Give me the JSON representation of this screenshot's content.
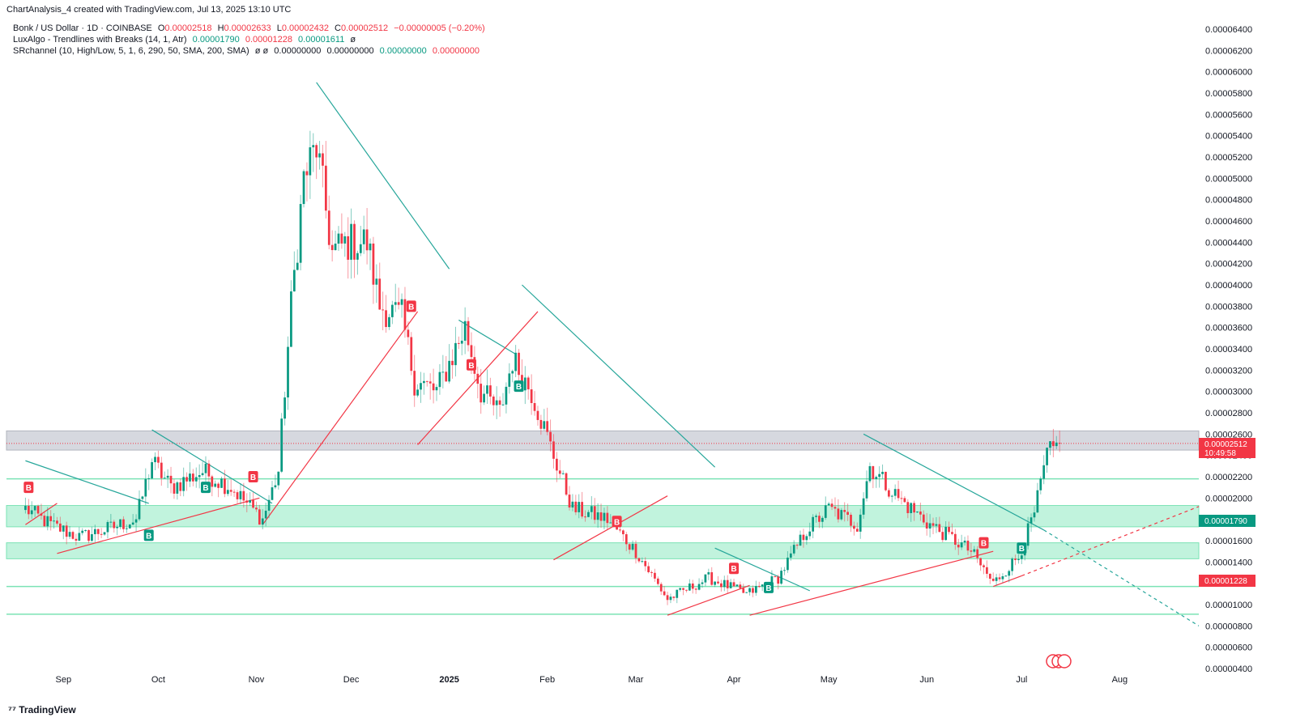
{
  "header": {
    "created_by": "ChartAnalysis_4 created with TradingView.com, Jul 13, 2025 13:10 UTC"
  },
  "legend": {
    "symbol_line": {
      "name": "Bonk / US Dollar · 1D · COINBASE",
      "open_label": "O",
      "open": "0.00002518",
      "high_label": "H",
      "high": "0.00002633",
      "low_label": "L",
      "low": "0.00002432",
      "close_label": "C",
      "close": "0.00002512",
      "change": "−0.00000005 (−0.20%)"
    },
    "luxalgo_line": {
      "name": "LuxAlgo - Trendlines with Breaks (14, 1, Atr)",
      "v1": "0.00001790",
      "v2": "0.00001228",
      "v3": "0.00001611",
      "icon": "ø"
    },
    "sr_line": {
      "name": "SRchannel (10, High/Low, 5, 1, 6, 290, 50, SMA, 200, SMA)",
      "icons": "ø ø",
      "v1": "0.00000000",
      "v2": "0.00000000",
      "v3": "0.00000000",
      "v4": "0.00000000"
    }
  },
  "footer": {
    "logo_text": "TradingView"
  },
  "price_tags": {
    "last_price": "0.00002512",
    "countdown": "10:49:58",
    "trend_upper": "0.00001790",
    "trend_lower": "0.00001228"
  },
  "colors": {
    "up": "#089981",
    "down": "#f23645",
    "zone": "#b2f0d4",
    "zone_line": "#7be3b5",
    "resistance_zone": "#d1d4dc",
    "trend_down": "#26a69a",
    "trend_up": "#f23645"
  },
  "chart_data": {
    "type": "candlestick",
    "title": "Bonk / US Dollar · 1D · COINBASE",
    "y_axis": {
      "min": 4e-06,
      "max": 6.4e-05,
      "step": 2e-06,
      "tick_labels": [
        "0.00006400",
        "0.00006200",
        "0.00006000",
        "0.00005800",
        "0.00005600",
        "0.00005400",
        "0.00005200",
        "0.00005000",
        "0.00004800",
        "0.00004600",
        "0.00004400",
        "0.00004200",
        "0.00004000",
        "0.00003800",
        "0.00003600",
        "0.00003400",
        "0.00003200",
        "0.00003000",
        "0.00002800",
        "0.00002600",
        "0.00002400",
        "0.00002200",
        "0.00002000",
        "0.00001800",
        "0.00001600",
        "0.00001400",
        "0.00001200",
        "0.00001000",
        "0.00000800",
        "0.00000600",
        "0.00000400"
      ]
    },
    "x_axis": {
      "tick_labels": [
        "Sep",
        "Oct",
        "Nov",
        "Dec",
        "2025",
        "Feb",
        "Mar",
        "Apr",
        "May",
        "Jun",
        "Jul",
        "Aug"
      ],
      "tick_dates": [
        "2024-09-01",
        "2024-10-01",
        "2024-11-01",
        "2024-12-01",
        "2025-01-01",
        "2025-02-01",
        "2025-03-01",
        "2025-04-01",
        "2025-05-01",
        "2025-06-01",
        "2025-07-01",
        "2025-08-01"
      ]
    },
    "price_anchors": [
      {
        "date": "2024-08-20",
        "close": 1.9e-05
      },
      {
        "date": "2024-08-28",
        "close": 1.75e-05
      },
      {
        "date": "2024-09-06",
        "close": 1.63e-05
      },
      {
        "date": "2024-09-14",
        "close": 1.7e-05
      },
      {
        "date": "2024-09-24",
        "close": 1.8e-05
      },
      {
        "date": "2024-09-29",
        "close": 2.35e-05
      },
      {
        "date": "2024-10-05",
        "close": 2.1e-05
      },
      {
        "date": "2024-10-15",
        "close": 2.25e-05
      },
      {
        "date": "2024-10-24",
        "close": 2.1e-05
      },
      {
        "date": "2024-11-03",
        "close": 1.8e-05
      },
      {
        "date": "2024-11-08",
        "close": 2.25e-05
      },
      {
        "date": "2024-11-12",
        "close": 3.8e-05
      },
      {
        "date": "2024-11-16",
        "close": 5e-05
      },
      {
        "date": "2024-11-20",
        "close": 5.3e-05
      },
      {
        "date": "2024-11-25",
        "close": 4.3e-05
      },
      {
        "date": "2024-11-30",
        "close": 4.4e-05
      },
      {
        "date": "2024-12-06",
        "close": 4.4e-05
      },
      {
        "date": "2024-12-10",
        "close": 3.8e-05
      },
      {
        "date": "2024-12-17",
        "close": 3.7e-05
      },
      {
        "date": "2024-12-21",
        "close": 3.1e-05
      },
      {
        "date": "2024-12-28",
        "close": 3e-05
      },
      {
        "date": "2025-01-06",
        "close": 3.6e-05
      },
      {
        "date": "2025-01-11",
        "close": 3e-05
      },
      {
        "date": "2025-01-17",
        "close": 2.8e-05
      },
      {
        "date": "2025-01-21",
        "close": 3.3e-05
      },
      {
        "date": "2025-01-27",
        "close": 3e-05
      },
      {
        "date": "2025-02-03",
        "close": 2.4e-05
      },
      {
        "date": "2025-02-09",
        "close": 1.9e-05
      },
      {
        "date": "2025-02-20",
        "close": 1.8e-05
      },
      {
        "date": "2025-03-01",
        "close": 1.5e-05
      },
      {
        "date": "2025-03-11",
        "close": 1.05e-05
      },
      {
        "date": "2025-03-24",
        "close": 1.25e-05
      },
      {
        "date": "2025-04-05",
        "close": 1.1e-05
      },
      {
        "date": "2025-04-15",
        "close": 1.25e-05
      },
      {
        "date": "2025-04-24",
        "close": 1.7e-05
      },
      {
        "date": "2025-05-01",
        "close": 1.9e-05
      },
      {
        "date": "2025-05-10",
        "close": 1.75e-05
      },
      {
        "date": "2025-05-14",
        "close": 2.3e-05
      },
      {
        "date": "2025-05-23",
        "close": 2e-05
      },
      {
        "date": "2025-06-02",
        "close": 1.75e-05
      },
      {
        "date": "2025-06-10",
        "close": 1.6e-05
      },
      {
        "date": "2025-06-15",
        "close": 1.5e-05
      },
      {
        "date": "2025-06-22",
        "close": 1.2e-05
      },
      {
        "date": "2025-06-30",
        "close": 1.45e-05
      },
      {
        "date": "2025-07-05",
        "close": 1.85e-05
      },
      {
        "date": "2025-07-09",
        "close": 2.4e-05
      },
      {
        "date": "2025-07-13",
        "close": 2.51e-05
      }
    ],
    "zones": [
      {
        "name": "resistance",
        "low": 2.45e-05,
        "high": 2.63e-05
      },
      {
        "name": "support-upper",
        "low": 1.73e-05,
        "high": 1.93e-05
      },
      {
        "name": "support-lower",
        "low": 1.43e-05,
        "high": 1.58e-05
      }
    ],
    "support_lines": [
      2.18e-05,
      1.17e-05,
      9.1e-06
    ],
    "trendlines_down": [
      [
        [
          "2024-08-20",
          2.35e-05
        ],
        [
          "2024-09-28",
          1.95e-05
        ]
      ],
      [
        [
          "2024-09-29",
          2.64e-05
        ],
        [
          "2024-11-06",
          1.95e-05
        ]
      ],
      [
        [
          "2024-11-20",
          5.9e-05
        ],
        [
          "2025-01-01",
          4.15e-05
        ]
      ],
      [
        [
          "2025-01-04",
          3.67e-05
        ],
        [
          "2025-01-22",
          3.35e-05
        ]
      ],
      [
        [
          "2025-01-24",
          4e-05
        ],
        [
          "2025-03-26",
          2.29e-05
        ]
      ],
      [
        [
          "2025-03-26",
          1.53e-05
        ],
        [
          "2025-04-25",
          1.13e-05
        ]
      ],
      [
        [
          "2025-05-12",
          2.6e-05
        ],
        [
          "2025-07-08",
          1.7e-05
        ]
      ]
    ],
    "trendlines_down_dashed": [
      [
        [
          "2025-07-08",
          1.7e-05
        ],
        [
          "2025-08-26",
          8e-06
        ]
      ]
    ],
    "trendlines_up": [
      [
        [
          "2024-08-20",
          1.75e-05
        ],
        [
          "2024-08-30",
          1.95e-05
        ]
      ],
      [
        [
          "2024-08-30",
          1.48e-05
        ],
        [
          "2024-11-02",
          2e-05
        ]
      ],
      [
        [
          "2024-11-03",
          1.75e-05
        ],
        [
          "2024-12-22",
          3.75e-05
        ]
      ],
      [
        [
          "2024-12-22",
          2.5e-05
        ],
        [
          "2025-01-29",
          3.75e-05
        ]
      ],
      [
        [
          "2025-02-03",
          1.42e-05
        ],
        [
          "2025-03-11",
          2.02e-05
        ]
      ],
      [
        [
          "2025-03-11",
          9e-06
        ],
        [
          "2025-04-06",
          1.18e-05
        ]
      ],
      [
        [
          "2025-04-06",
          9e-06
        ],
        [
          "2025-06-22",
          1.5e-05
        ]
      ],
      [
        [
          "2025-06-22",
          1.17e-05
        ],
        [
          "2025-07-01",
          1.27e-05
        ]
      ]
    ],
    "trendlines_up_dashed": [
      [
        [
          "2025-07-01",
          1.27e-05
        ],
        [
          "2025-08-26",
          1.92e-05
        ]
      ]
    ],
    "markers": [
      {
        "type": "sell",
        "label": "B",
        "date": "2024-08-21",
        "value": 2.1e-05
      },
      {
        "type": "buy",
        "label": "B",
        "date": "2024-09-28",
        "value": 1.65e-05
      },
      {
        "type": "buy",
        "label": "B",
        "date": "2024-10-16",
        "value": 2.1e-05
      },
      {
        "type": "sell",
        "label": "B",
        "date": "2024-10-31",
        "value": 2.2e-05
      },
      {
        "type": "sell",
        "label": "B",
        "date": "2024-12-20",
        "value": 3.8e-05
      },
      {
        "type": "sell",
        "label": "B",
        "date": "2025-01-08",
        "value": 3.25e-05
      },
      {
        "type": "buy",
        "label": "B",
        "date": "2025-01-23",
        "value": 3.05e-05
      },
      {
        "type": "sell",
        "label": "B",
        "date": "2025-02-23",
        "value": 1.78e-05
      },
      {
        "type": "sell",
        "label": "B",
        "date": "2025-04-01",
        "value": 1.34e-05
      },
      {
        "type": "buy",
        "label": "B",
        "date": "2025-04-12",
        "value": 1.16e-05
      },
      {
        "type": "sell",
        "label": "B",
        "date": "2025-06-19",
        "value": 1.58e-05
      },
      {
        "type": "buy",
        "label": "B",
        "date": "2025-07-01",
        "value": 1.53e-05
      }
    ]
  }
}
